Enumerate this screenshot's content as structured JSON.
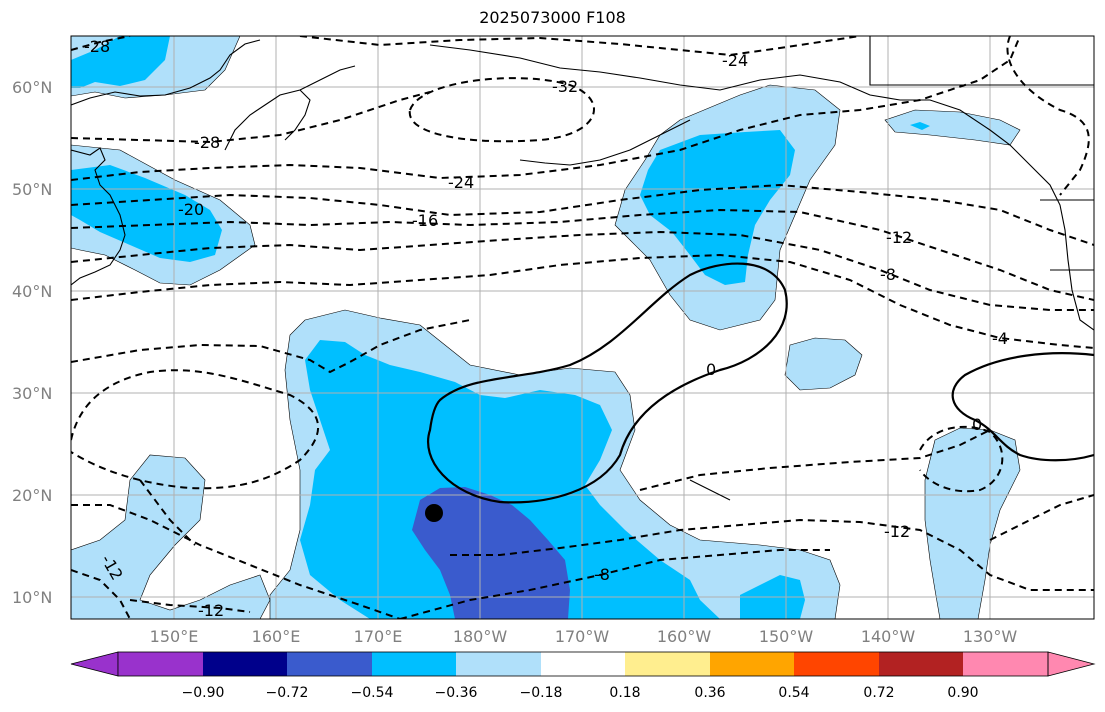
{
  "title": "2025073000 F108",
  "lat_labels": [
    "60°N",
    "50°N",
    "40°N",
    "30°N",
    "20°N",
    "10°N"
  ],
  "lon_labels": [
    "150°E",
    "160°E",
    "170°E",
    "180°W",
    "170°W",
    "160°W",
    "150°W",
    "140°W",
    "130°W"
  ],
  "contour_labels": [
    "-28",
    "-32",
    "-24",
    "-28",
    "-24",
    "-16",
    "-20",
    "-12",
    "-8",
    "-4",
    "0",
    "0",
    "-8",
    "-12",
    "-12",
    "-12"
  ],
  "colorbar": {
    "colors": [
      "#9932cc",
      "#00008b",
      "#3a5bcd",
      "#00bfff",
      "#b0e0fa",
      "#ffffff",
      "#ffee8f",
      "#ffa500",
      "#ff4500",
      "#b22222",
      "#ff88b0"
    ],
    "ticks": [
      "−0.90",
      "−0.72",
      "−0.54",
      "−0.36",
      "−0.18",
      "0.18",
      "0.36",
      "0.54",
      "0.72",
      "0.90"
    ]
  },
  "marker": {
    "label": "storm-location"
  }
}
